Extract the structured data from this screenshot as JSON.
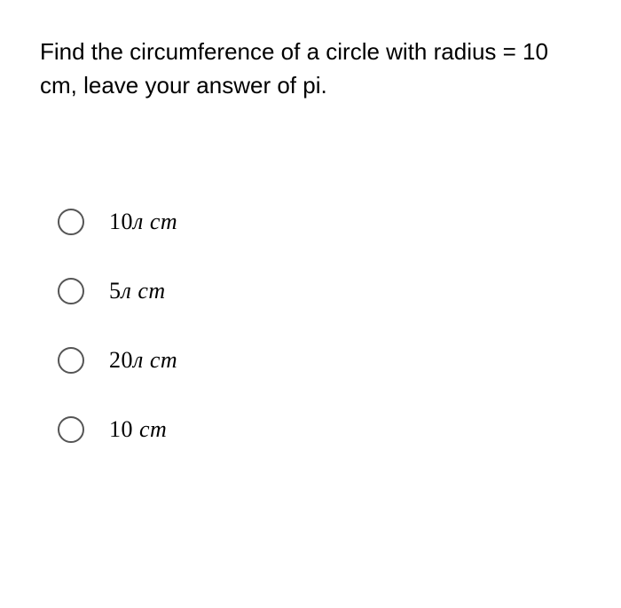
{
  "question": {
    "text": "Find the circumference of a circle with radius = 10 cm, leave your answer of pi."
  },
  "options": [
    {
      "prefix": "10",
      "pi": "л",
      "unit": " cm"
    },
    {
      "prefix": "5",
      "pi": "л",
      "unit": " cm"
    },
    {
      "prefix": "20",
      "pi": "л",
      "unit": " cm"
    },
    {
      "prefix": "10",
      "pi": "",
      "unit": " cm"
    }
  ],
  "styling": {
    "background_color": "#ffffff",
    "question_fontsize": 26,
    "question_color": "#000000",
    "option_fontsize": 26,
    "option_font": "Times New Roman italic",
    "radio_border_color": "#555555",
    "radio_size": 30
  }
}
